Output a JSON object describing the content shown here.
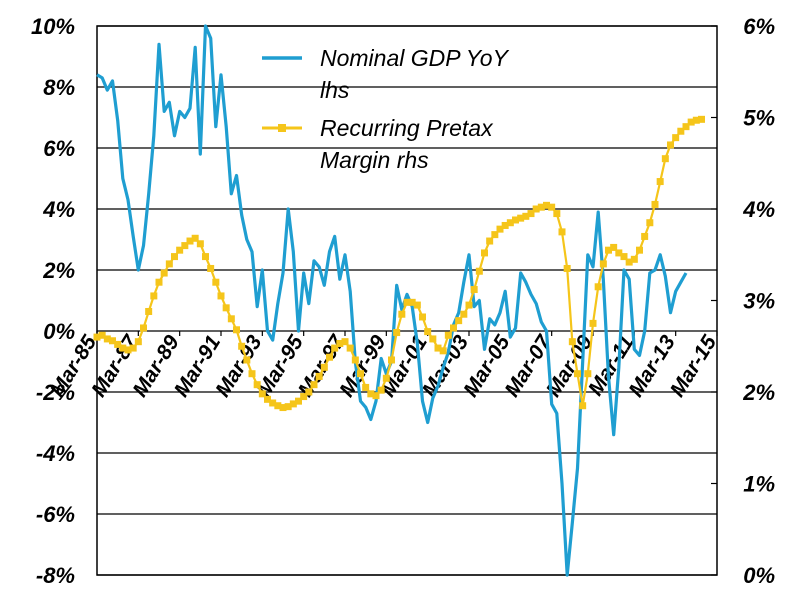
{
  "chart_data": {
    "type": "line",
    "y_left": {
      "ticks": [
        "10%",
        "8%",
        "6%",
        "4%",
        "2%",
        "0%",
        "-2%",
        "-4%",
        "-6%",
        "-8%"
      ],
      "lim": [
        -8,
        10
      ]
    },
    "y_right": {
      "ticks": [
        "6%",
        "5%",
        "4%",
        "3%",
        "2%",
        "1%",
        "0%"
      ],
      "lim": [
        0,
        6
      ]
    },
    "x_ticks": [
      "Mar-85",
      "Mar-87",
      "Mar-89",
      "Mar-91",
      "Mar-93",
      "Mar-95",
      "Mar-97",
      "Mar-99",
      "Mar-01",
      "Mar-03",
      "Mar-05",
      "Mar-07",
      "Mar-09",
      "Mar-11",
      "Mar-13",
      "Mar-15"
    ],
    "x_range": [
      1985.0,
      2015.0
    ],
    "grid": true,
    "legend_position": "top-center",
    "series": [
      {
        "name": "Nominal GDP YoY",
        "name_line2": "lhs",
        "axis": "left",
        "color": "#1f9ed1",
        "marker": "none",
        "points": [
          [
            1985.0,
            8.4
          ],
          [
            1985.25,
            8.3
          ],
          [
            1985.5,
            7.9
          ],
          [
            1985.75,
            8.2
          ],
          [
            1986.0,
            6.9
          ],
          [
            1986.25,
            5.0
          ],
          [
            1986.5,
            4.3
          ],
          [
            1986.75,
            3.1
          ],
          [
            1987.0,
            2.0
          ],
          [
            1987.25,
            2.8
          ],
          [
            1987.5,
            4.5
          ],
          [
            1987.75,
            6.4
          ],
          [
            1988.0,
            9.4
          ],
          [
            1988.25,
            7.2
          ],
          [
            1988.5,
            7.5
          ],
          [
            1988.75,
            6.4
          ],
          [
            1989.0,
            7.2
          ],
          [
            1989.25,
            7.0
          ],
          [
            1989.5,
            7.3
          ],
          [
            1989.75,
            9.3
          ],
          [
            1990.0,
            5.8
          ],
          [
            1990.25,
            10.0
          ],
          [
            1990.5,
            9.6
          ],
          [
            1990.75,
            6.7
          ],
          [
            1991.0,
            8.4
          ],
          [
            1991.25,
            6.7
          ],
          [
            1991.5,
            4.5
          ],
          [
            1991.75,
            5.1
          ],
          [
            1992.0,
            3.8
          ],
          [
            1992.25,
            3.0
          ],
          [
            1992.5,
            2.6
          ],
          [
            1992.75,
            0.8
          ],
          [
            1993.0,
            2.0
          ],
          [
            1993.25,
            0.0
          ],
          [
            1993.5,
            -0.3
          ],
          [
            1993.75,
            0.9
          ],
          [
            1994.0,
            1.9
          ],
          [
            1994.25,
            4.0
          ],
          [
            1994.5,
            2.6
          ],
          [
            1994.75,
            0.0
          ],
          [
            1995.0,
            1.9
          ],
          [
            1995.25,
            0.9
          ],
          [
            1995.5,
            2.3
          ],
          [
            1995.75,
            2.1
          ],
          [
            1996.0,
            1.5
          ],
          [
            1996.25,
            2.6
          ],
          [
            1996.5,
            3.1
          ],
          [
            1996.75,
            1.7
          ],
          [
            1997.0,
            2.5
          ],
          [
            1997.25,
            1.3
          ],
          [
            1997.5,
            -1.0
          ],
          [
            1997.75,
            -2.3
          ],
          [
            1998.0,
            -2.5
          ],
          [
            1998.25,
            -2.9
          ],
          [
            1998.5,
            -2.3
          ],
          [
            1998.75,
            -0.9
          ],
          [
            1999.0,
            -1.4
          ],
          [
            1999.25,
            -1.0
          ],
          [
            1999.5,
            1.5
          ],
          [
            1999.75,
            0.7
          ],
          [
            2000.0,
            1.2
          ],
          [
            2000.25,
            0.8
          ],
          [
            2000.5,
            -0.4
          ],
          [
            2000.75,
            -2.3
          ],
          [
            2001.0,
            -3.0
          ],
          [
            2001.25,
            -2.2
          ],
          [
            2001.5,
            -1.8
          ],
          [
            2001.75,
            -1.2
          ],
          [
            2002.0,
            -0.7
          ],
          [
            2002.25,
            0.2
          ],
          [
            2002.5,
            0.6
          ],
          [
            2002.75,
            1.6
          ],
          [
            2003.0,
            2.5
          ],
          [
            2003.25,
            0.8
          ],
          [
            2003.5,
            1.0
          ],
          [
            2003.75,
            -0.6
          ],
          [
            2004.0,
            0.4
          ],
          [
            2004.25,
            0.2
          ],
          [
            2004.5,
            0.6
          ],
          [
            2004.75,
            1.3
          ],
          [
            2005.0,
            -0.2
          ],
          [
            2005.25,
            0.1
          ],
          [
            2005.5,
            1.9
          ],
          [
            2005.75,
            1.6
          ],
          [
            2006.0,
            1.2
          ],
          [
            2006.25,
            0.9
          ],
          [
            2006.5,
            0.3
          ],
          [
            2006.75,
            0.0
          ],
          [
            2007.0,
            -2.4
          ],
          [
            2007.25,
            -2.7
          ],
          [
            2007.5,
            -5.0
          ],
          [
            2007.75,
            -8.0
          ],
          [
            2008.0,
            -6.3
          ],
          [
            2008.25,
            -4.5
          ],
          [
            2008.5,
            -1.0
          ],
          [
            2008.75,
            2.5
          ],
          [
            2009.0,
            2.1
          ],
          [
            2009.25,
            3.9
          ],
          [
            2009.5,
            1.7
          ],
          [
            2009.75,
            -1.5
          ],
          [
            2010.0,
            -3.4
          ],
          [
            2010.25,
            -1.2
          ],
          [
            2010.5,
            2.0
          ],
          [
            2010.75,
            1.7
          ],
          [
            2011.0,
            -0.6
          ],
          [
            2011.25,
            -0.8
          ],
          [
            2011.5,
            0.0
          ],
          [
            2011.75,
            1.9
          ],
          [
            2012.0,
            2.0
          ],
          [
            2012.25,
            2.5
          ],
          [
            2012.5,
            1.8
          ],
          [
            2012.75,
            0.6
          ],
          [
            2013.0,
            1.3
          ],
          [
            2013.25,
            1.6
          ],
          [
            2013.5,
            1.9
          ]
        ]
      },
      {
        "name": "Recurring Pretax",
        "name_line2": "Margin rhs",
        "axis": "right",
        "color": "#f5c51a",
        "marker": "square",
        "points": [
          [
            1985.0,
            2.6
          ],
          [
            1985.25,
            2.62
          ],
          [
            1985.5,
            2.58
          ],
          [
            1985.75,
            2.56
          ],
          [
            1986.0,
            2.52
          ],
          [
            1986.25,
            2.48
          ],
          [
            1986.5,
            2.46
          ],
          [
            1986.75,
            2.48
          ],
          [
            1987.0,
            2.55
          ],
          [
            1987.25,
            2.7
          ],
          [
            1987.5,
            2.88
          ],
          [
            1987.75,
            3.05
          ],
          [
            1988.0,
            3.2
          ],
          [
            1988.25,
            3.3
          ],
          [
            1988.5,
            3.4
          ],
          [
            1988.75,
            3.48
          ],
          [
            1989.0,
            3.55
          ],
          [
            1989.25,
            3.6
          ],
          [
            1989.5,
            3.65
          ],
          [
            1989.75,
            3.68
          ],
          [
            1990.0,
            3.62
          ],
          [
            1990.25,
            3.48
          ],
          [
            1990.5,
            3.35
          ],
          [
            1990.75,
            3.2
          ],
          [
            1991.0,
            3.05
          ],
          [
            1991.25,
            2.92
          ],
          [
            1991.5,
            2.8
          ],
          [
            1991.75,
            2.68
          ],
          [
            1992.0,
            2.5
          ],
          [
            1992.25,
            2.35
          ],
          [
            1992.5,
            2.2
          ],
          [
            1992.75,
            2.08
          ],
          [
            1993.0,
            1.98
          ],
          [
            1993.25,
            1.92
          ],
          [
            1993.5,
            1.88
          ],
          [
            1993.75,
            1.85
          ],
          [
            1994.0,
            1.83
          ],
          [
            1994.25,
            1.84
          ],
          [
            1994.5,
            1.87
          ],
          [
            1994.75,
            1.9
          ],
          [
            1995.0,
            1.95
          ],
          [
            1995.25,
            2.0
          ],
          [
            1995.5,
            2.08
          ],
          [
            1995.75,
            2.17
          ],
          [
            1996.0,
            2.27
          ],
          [
            1996.25,
            2.38
          ],
          [
            1996.5,
            2.48
          ],
          [
            1996.75,
            2.53
          ],
          [
            1997.0,
            2.55
          ],
          [
            1997.25,
            2.48
          ],
          [
            1997.5,
            2.35
          ],
          [
            1997.75,
            2.2
          ],
          [
            1998.0,
            2.05
          ],
          [
            1998.25,
            1.98
          ],
          [
            1998.5,
            1.96
          ],
          [
            1998.75,
            2.02
          ],
          [
            1999.0,
            2.15
          ],
          [
            1999.25,
            2.35
          ],
          [
            1999.5,
            2.65
          ],
          [
            1999.75,
            2.85
          ],
          [
            2000.0,
            2.98
          ],
          [
            2000.25,
            2.98
          ],
          [
            2000.5,
            2.95
          ],
          [
            2000.75,
            2.82
          ],
          [
            2001.0,
            2.66
          ],
          [
            2001.25,
            2.58
          ],
          [
            2001.5,
            2.48
          ],
          [
            2001.75,
            2.45
          ],
          [
            2002.0,
            2.62
          ],
          [
            2002.25,
            2.7
          ],
          [
            2002.5,
            2.78
          ],
          [
            2002.75,
            2.85
          ],
          [
            2003.0,
            2.95
          ],
          [
            2003.25,
            3.12
          ],
          [
            2003.5,
            3.32
          ],
          [
            2003.75,
            3.52
          ],
          [
            2004.0,
            3.65
          ],
          [
            2004.25,
            3.72
          ],
          [
            2004.5,
            3.78
          ],
          [
            2004.75,
            3.82
          ],
          [
            2005.0,
            3.85
          ],
          [
            2005.25,
            3.88
          ],
          [
            2005.5,
            3.9
          ],
          [
            2005.75,
            3.92
          ],
          [
            2006.0,
            3.95
          ],
          [
            2006.25,
            4.0
          ],
          [
            2006.5,
            4.02
          ],
          [
            2006.75,
            4.04
          ],
          [
            2007.0,
            4.02
          ],
          [
            2007.25,
            3.95
          ],
          [
            2007.5,
            3.75
          ],
          [
            2007.75,
            3.35
          ],
          [
            2008.0,
            2.55
          ],
          [
            2008.25,
            2.2
          ],
          [
            2008.5,
            1.85
          ],
          [
            2008.75,
            2.2
          ],
          [
            2009.0,
            2.75
          ],
          [
            2009.25,
            3.15
          ],
          [
            2009.5,
            3.4
          ],
          [
            2009.75,
            3.55
          ],
          [
            2010.0,
            3.58
          ],
          [
            2010.25,
            3.52
          ],
          [
            2010.5,
            3.48
          ],
          [
            2010.75,
            3.42
          ],
          [
            2011.0,
            3.45
          ],
          [
            2011.25,
            3.55
          ],
          [
            2011.5,
            3.7
          ],
          [
            2011.75,
            3.85
          ],
          [
            2012.0,
            4.05
          ],
          [
            2012.25,
            4.3
          ],
          [
            2012.5,
            4.55
          ],
          [
            2012.75,
            4.7
          ],
          [
            2013.0,
            4.78
          ],
          [
            2013.25,
            4.85
          ],
          [
            2013.5,
            4.9
          ],
          [
            2013.75,
            4.95
          ],
          [
            2014.0,
            4.97
          ],
          [
            2014.25,
            4.98
          ]
        ]
      }
    ]
  }
}
